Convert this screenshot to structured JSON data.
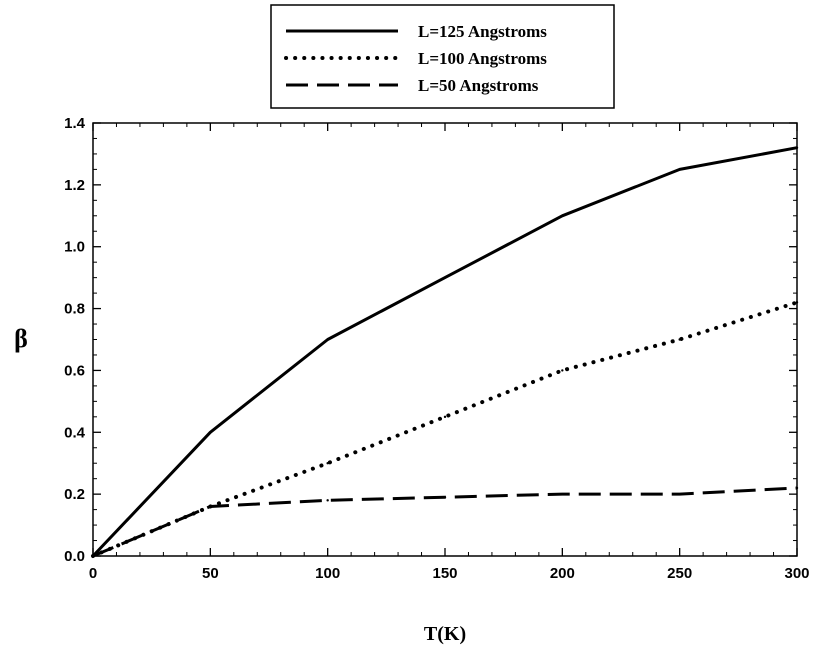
{
  "chart_data": {
    "type": "line",
    "xlabel": "T(K)",
    "ylabel": "β",
    "xlim": [
      0,
      300
    ],
    "ylim": [
      0,
      1.4
    ],
    "x_ticks": [
      0,
      50,
      100,
      150,
      200,
      250,
      300
    ],
    "y_ticks": [
      "0.0",
      "0.2",
      "0.4",
      "0.6",
      "0.8",
      "1.0",
      "1.2",
      "1.4"
    ],
    "grid": false,
    "legend_position": "top-center",
    "series": [
      {
        "name": "L=125 Angstroms",
        "line_style": "solid",
        "color": "#000000",
        "x": [
          0,
          50,
          100,
          150,
          200,
          250,
          300
        ],
        "y": [
          0.0,
          0.4,
          0.7,
          0.9,
          1.1,
          1.25,
          1.32
        ]
      },
      {
        "name": "L=100 Angstroms",
        "line_style": "dotted",
        "color": "#000000",
        "x": [
          0,
          50,
          100,
          150,
          200,
          250,
          300
        ],
        "y": [
          0.0,
          0.16,
          0.3,
          0.45,
          0.6,
          0.7,
          0.82
        ]
      },
      {
        "name": "L=50 Angstroms",
        "line_style": "dashed",
        "color": "#000000",
        "x": [
          0,
          50,
          100,
          150,
          200,
          250,
          300
        ],
        "y": [
          0.0,
          0.16,
          0.18,
          0.19,
          0.2,
          0.2,
          0.22
        ]
      }
    ]
  }
}
